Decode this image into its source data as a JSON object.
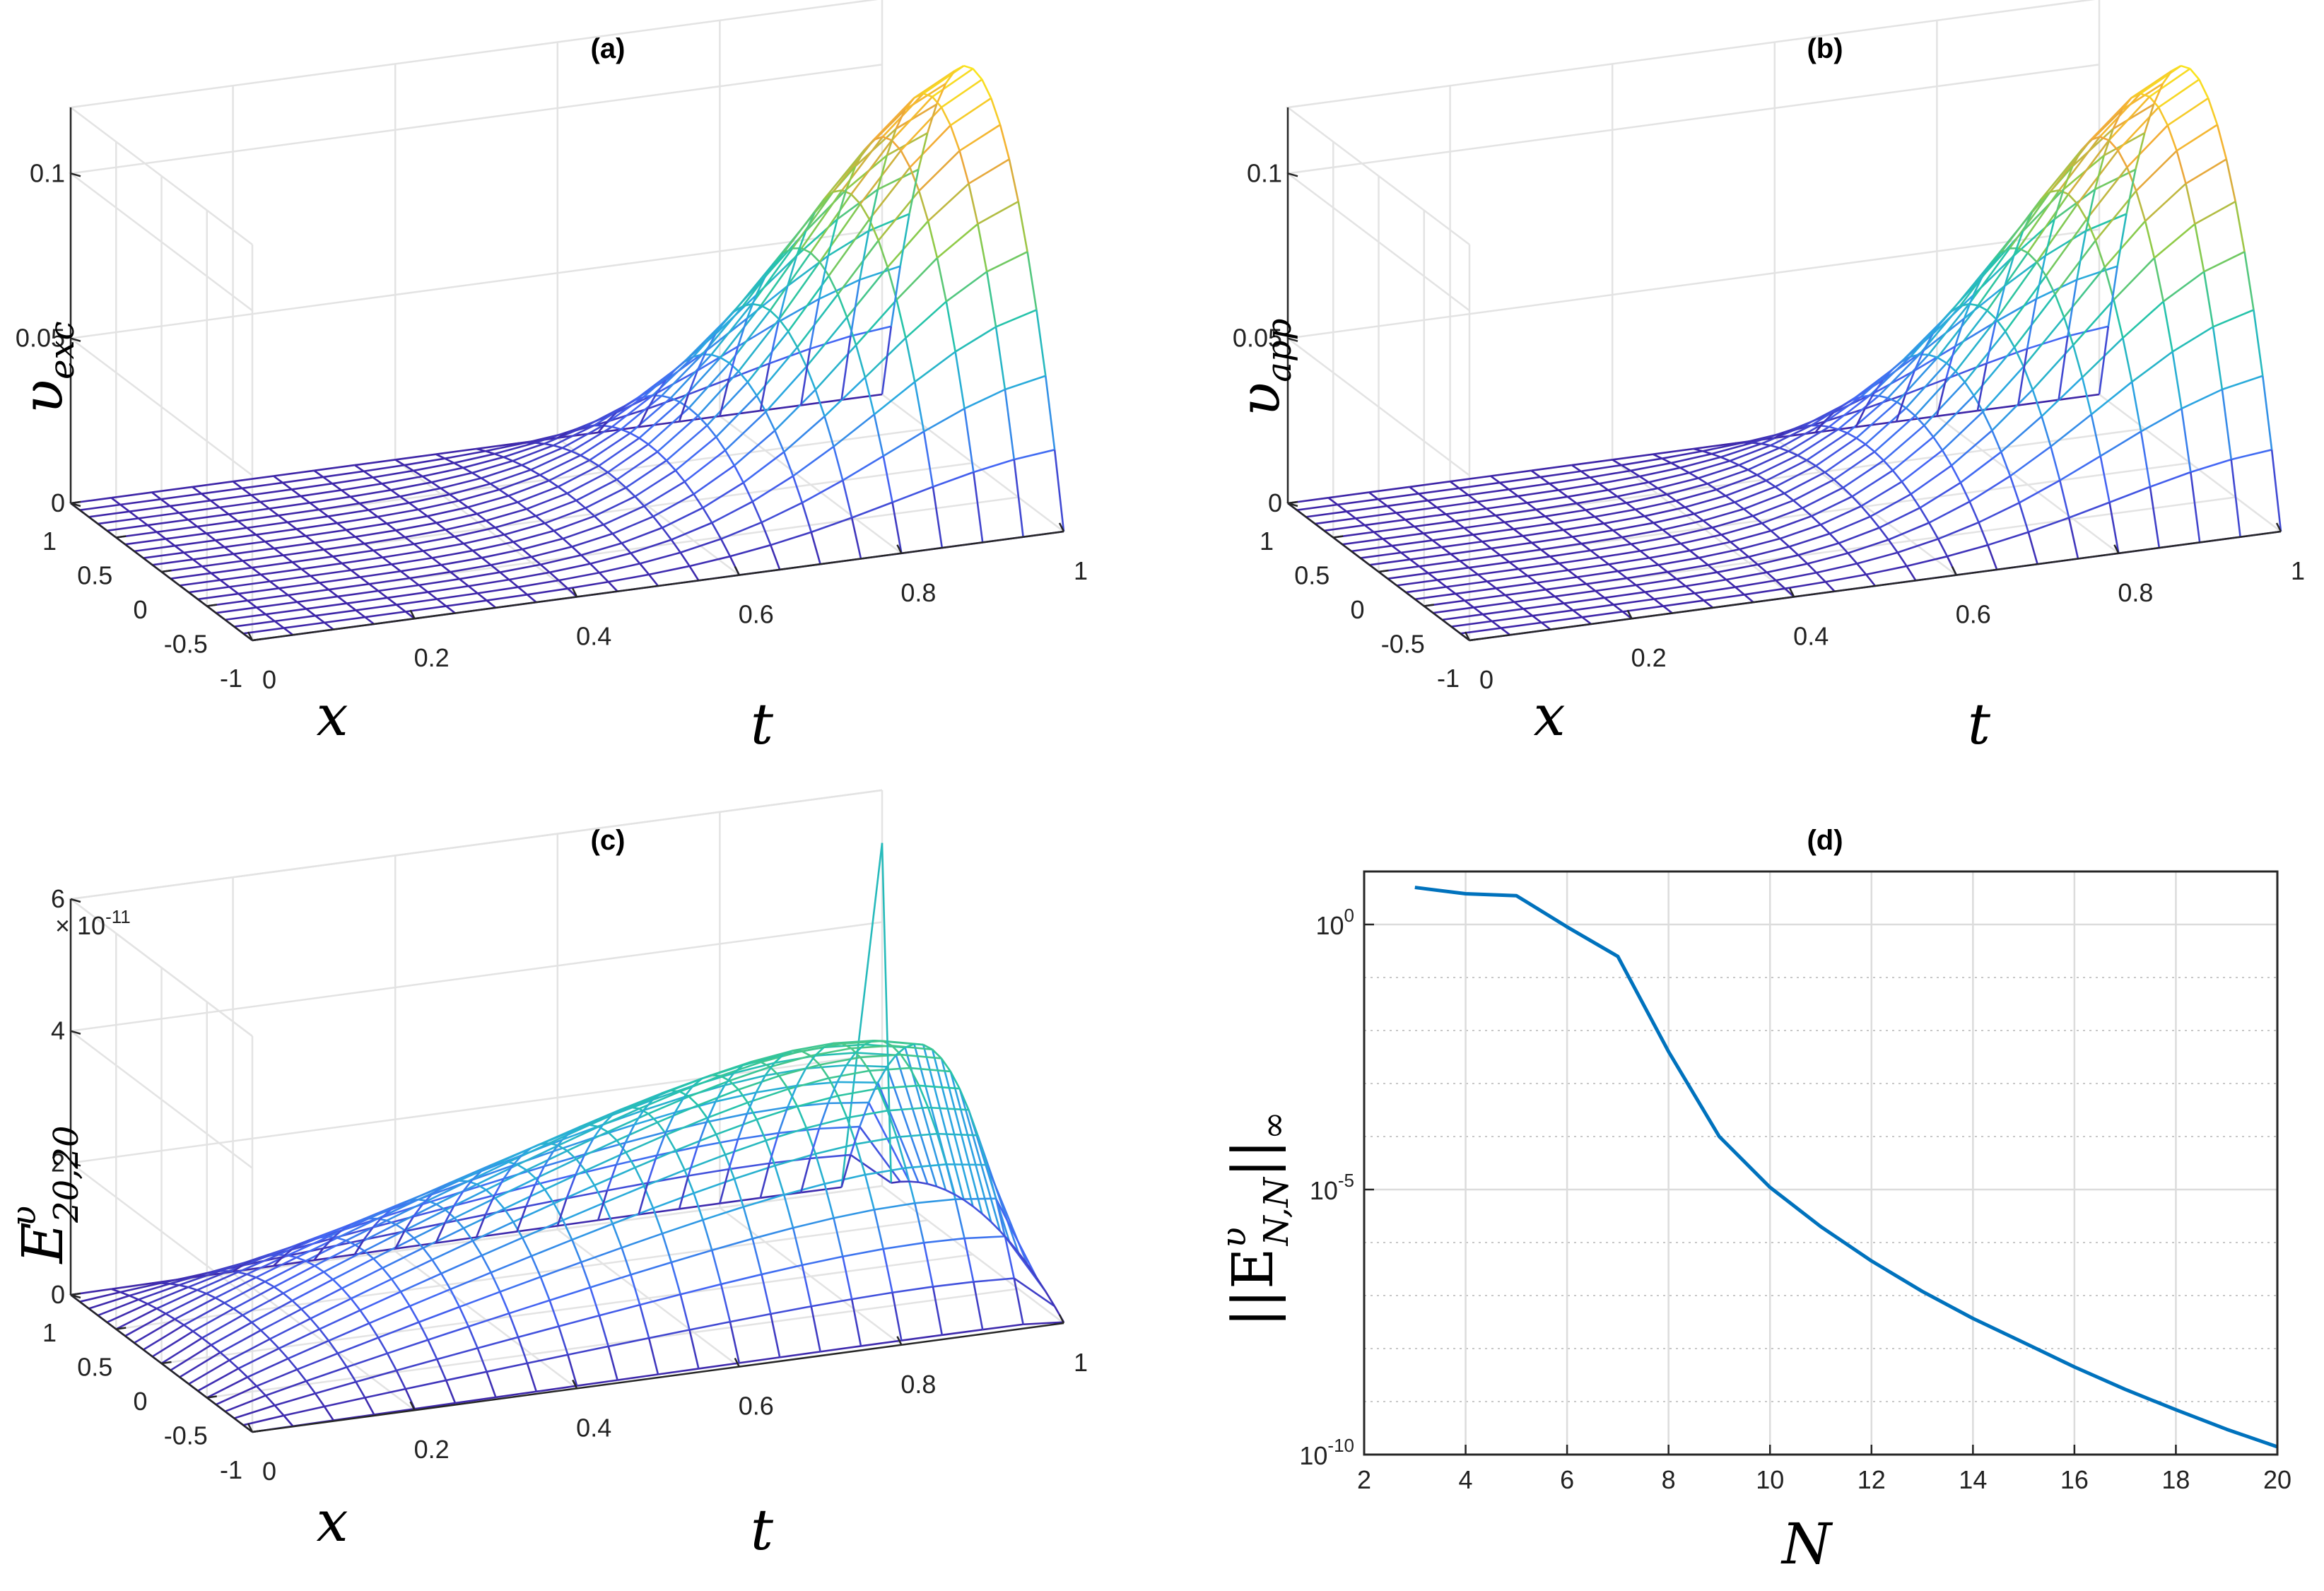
{
  "chart_data": [
    {
      "id": "a",
      "type": "surface",
      "title": "(a)",
      "xlabel": "x",
      "tlabel": "t",
      "zlabel_base": "υ",
      "zlabel_sub": "exc",
      "x_ticks": [
        "-1",
        "-0.5",
        "0",
        "0.5",
        "1"
      ],
      "t_ticks": [
        "0",
        "0.2",
        "0.4",
        "0.6",
        "0.8",
        "1"
      ],
      "z_ticks": [
        "0",
        "0.05",
        "0.1"
      ],
      "z_range": [
        0,
        0.12
      ],
      "grid": true,
      "colormap": [
        "#3e26a8",
        "#4465f4",
        "#2aa9df",
        "#26c4a8",
        "#8fcb48",
        "#f2a43a",
        "#f9e81c"
      ],
      "function": "approx. (1 - x^2)·v(t), v rising to a peak of about 0.12 near t = 1"
    },
    {
      "id": "b",
      "type": "surface",
      "title": "(b)",
      "xlabel": "x",
      "tlabel": "t",
      "zlabel_base": "υ",
      "zlabel_sub": "app",
      "x_ticks": [
        "-1",
        "-0.5",
        "0",
        "0.5",
        "1"
      ],
      "t_ticks": [
        "0",
        "0.2",
        "0.4",
        "0.6",
        "0.8",
        "1"
      ],
      "z_ticks": [
        "0",
        "0.05",
        "0.1"
      ],
      "z_range": [
        0,
        0.12
      ],
      "grid": true,
      "colormap": [
        "#3e26a8",
        "#4465f4",
        "#2aa9df",
        "#26c4a8",
        "#8fcb48",
        "#f2a43a",
        "#f9e81c"
      ]
    },
    {
      "id": "c",
      "type": "surface",
      "title": "(c)",
      "xlabel": "x",
      "tlabel": "t",
      "zlabel_base": "E",
      "zlabel_sup": "υ",
      "zlabel_sub": "20,20",
      "exponent_label": "× 10",
      "exponent_power": "-11",
      "x_ticks": [
        "-1",
        "-0.5",
        "0",
        "0.5",
        "1"
      ],
      "t_ticks": [
        "0",
        "0.2",
        "0.4",
        "0.6",
        "0.8",
        "1"
      ],
      "z_ticks": [
        "0",
        "2",
        "4",
        "6"
      ],
      "z_range": [
        0,
        6
      ],
      "grid": true,
      "colormap": [
        "#3e26a8",
        "#4465f4",
        "#2aa9df",
        "#26c4a8",
        "#8fcb48",
        "#f2a43a",
        "#f9e81c"
      ]
    },
    {
      "id": "d",
      "type": "line",
      "title": "(d)",
      "xlabel": "N",
      "ylabel_base": "||E",
      "ylabel_sup": "υ",
      "ylabel_sub": "N,N",
      "ylabel_end": "||",
      "ylabel_inf": "∞",
      "yscale": "log",
      "xlim": [
        2,
        20
      ],
      "ylim": [
        1e-10,
        10
      ],
      "x_ticks": [
        "2",
        "4",
        "6",
        "8",
        "10",
        "12",
        "14",
        "16",
        "18",
        "20"
      ],
      "y_ticks": [
        {
          "base": "10",
          "exp": "0",
          "value": 1
        },
        {
          "base": "10",
          "exp": "-5",
          "value": 1e-05
        },
        {
          "base": "10",
          "exp": "-10",
          "value": 1e-10
        }
      ],
      "grid": true,
      "minor_grid": true,
      "line_color": "#0072bd",
      "series": [
        {
          "x": [
            3,
            4,
            5,
            6,
            7,
            8,
            9,
            10,
            11,
            12,
            13,
            14,
            15,
            16,
            17,
            18,
            19,
            20
          ],
          "y": [
            5.0,
            3.8,
            3.5,
            0.9,
            0.25,
            0.004,
            0.0001,
            1.1e-05,
            2e-06,
            4.5e-07,
            1.2e-07,
            3.7e-08,
            1.3e-08,
            4.5e-09,
            1.7e-09,
            7e-10,
            3e-10,
            1.4e-10
          ]
        }
      ]
    }
  ]
}
